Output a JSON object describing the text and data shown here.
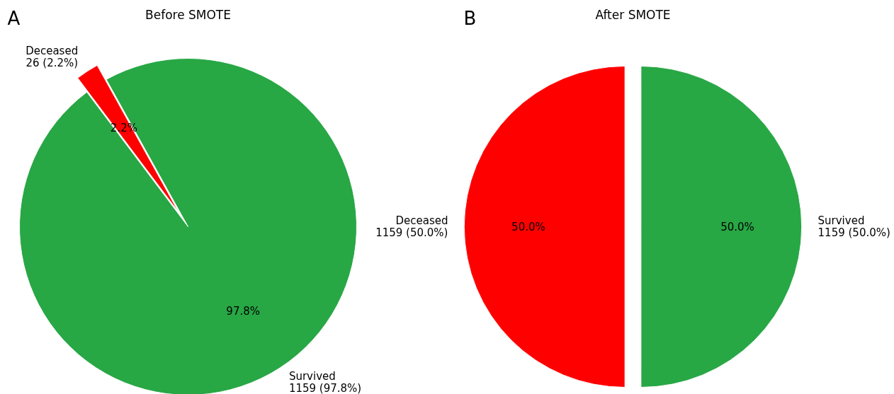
{
  "chart_data": [
    {
      "type": "pie",
      "title": "Before SMOTE",
      "subtitle": "A",
      "categories": [
        "Deceased",
        "Survived"
      ],
      "values": [
        26,
        1159
      ],
      "colors": [
        "#ff0000",
        "#28a745"
      ],
      "value_labels": [
        "26 (2.2%)",
        "1159 (97.8%)"
      ],
      "annotations": [
        "2.2%",
        "97.8%"
      ]
    },
    {
      "type": "pie",
      "title": "After SMOTE",
      "subtitle": "B",
      "categories": [
        "Deceased",
        "Survived"
      ],
      "values": [
        1159,
        1159
      ],
      "colors": [
        "#ff0000",
        "#28a745"
      ],
      "value_labels": [
        "1159 (50.0%)",
        "1159 (50.0%)"
      ],
      "annotations": [
        "50.0%",
        "50.0%"
      ]
    }
  ]
}
